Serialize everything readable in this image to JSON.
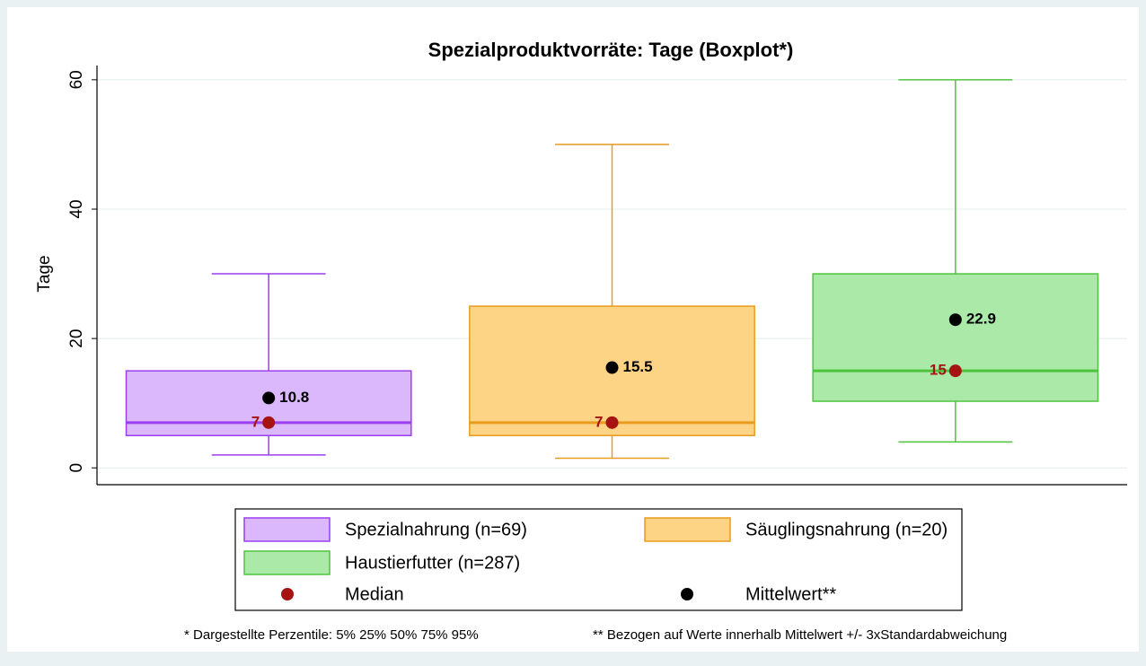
{
  "chart_data": {
    "type": "box",
    "title": "Spezialproduktvorräte: Tage (Boxplot*)",
    "ylabel": "Tage",
    "ylim": [
      -2.6,
      62.2
    ],
    "yticks": [
      0,
      20,
      40,
      60
    ],
    "grid": true,
    "series": [
      {
        "name": "Spezialnahrung (n=69)",
        "color": "#9b3ff0",
        "fill": "#dab8fb",
        "whisker_low": 2,
        "q1": 5,
        "median": 7,
        "q3": 15,
        "whisker_high": 30,
        "mean": 10.8
      },
      {
        "name": "Säuglingsnahrung (n=20)",
        "color": "#e89b1e",
        "fill": "#fdd386",
        "whisker_low": 1.5,
        "q1": 5,
        "median": 7,
        "q3": 25,
        "whisker_high": 50,
        "mean": 15.5
      },
      {
        "name": "Haustierfutter (n=287)",
        "color": "#4ec43e",
        "fill": "#aae9a7",
        "whisker_low": 4,
        "q1": 10.3,
        "median": 15,
        "q3": 30,
        "whisker_high": 60,
        "mean": 22.9
      }
    ],
    "median_legend": "Median",
    "median_color": "#a51313",
    "mean_legend": "Mittelwert**",
    "mean_color": "#000000",
    "notes": [
      "* Dargestellte Perzentile: 5% 25% 50% 75% 95%",
      "** Bezogen auf Werte innerhalb Mittelwert +/- 3xStandardabweichung"
    ]
  }
}
